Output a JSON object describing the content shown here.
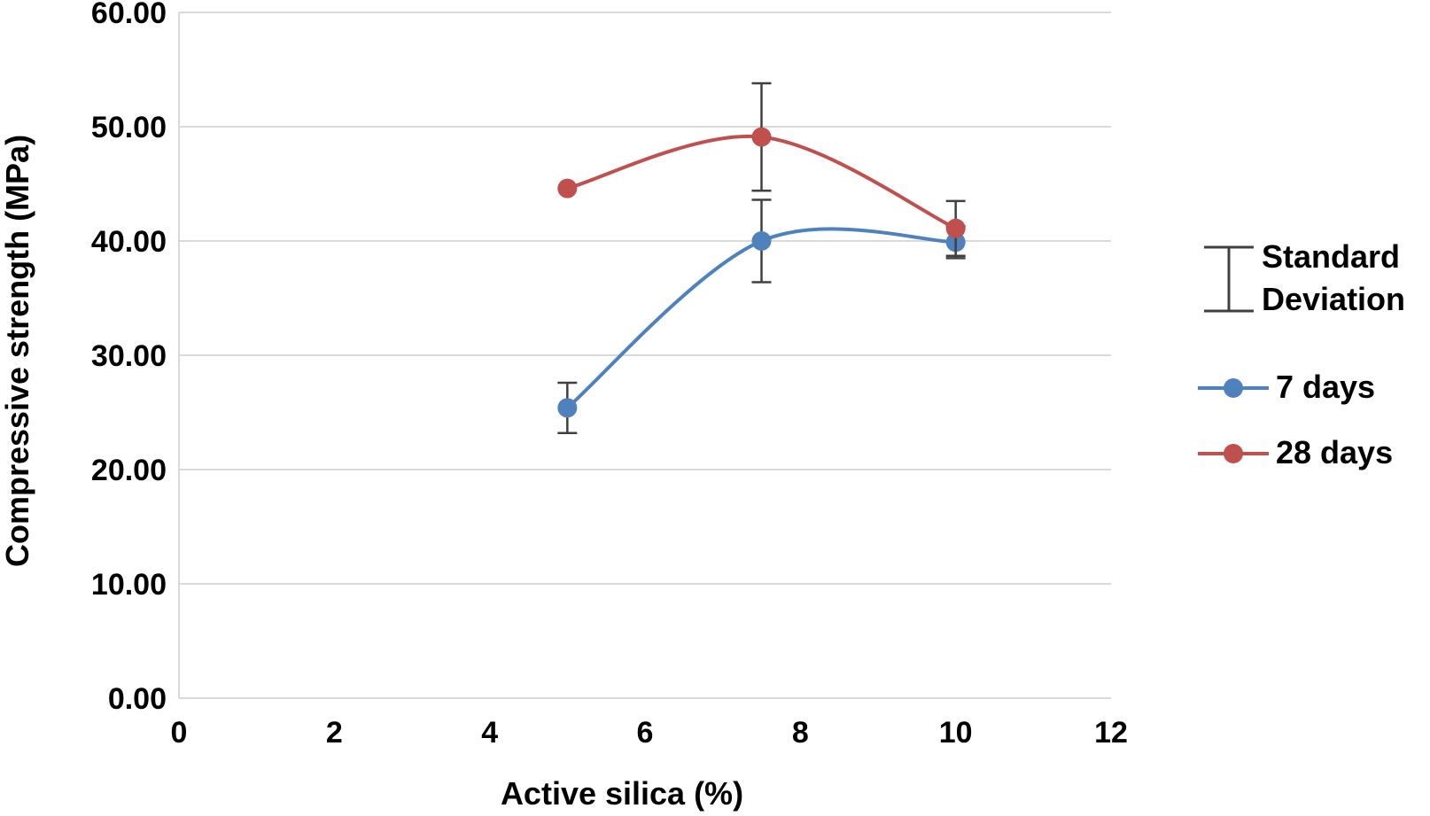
{
  "chart_data": {
    "type": "line",
    "title": "",
    "xlabel": "Active silica (%)",
    "ylabel": "Compressive strength (MPa)",
    "xlim": [
      0,
      12
    ],
    "ylim": [
      0,
      60
    ],
    "x_ticks": [
      "0",
      "2",
      "4",
      "6",
      "8",
      "10",
      "12"
    ],
    "y_ticks": [
      "0.00",
      "10.00",
      "20.00",
      "30.00",
      "40.00",
      "50.00",
      "60.00"
    ],
    "grid": "horizontal",
    "legend_position": "right",
    "error_bar_label": "Standard Deviation",
    "error_bar_label_lines": [
      "Standard",
      "Deviation"
    ],
    "series": [
      {
        "name": "7 days",
        "color": "#4F81BD",
        "x": [
          5,
          7.5,
          10
        ],
        "y": [
          25.4,
          40.0,
          39.9
        ],
        "error": [
          2.2,
          3.6,
          1.4
        ]
      },
      {
        "name": "28 days",
        "color": "#C0504D",
        "x": [
          5,
          7.5,
          10
        ],
        "y": [
          44.6,
          49.1,
          41.1
        ],
        "error": [
          0,
          4.7,
          2.4
        ]
      }
    ]
  }
}
